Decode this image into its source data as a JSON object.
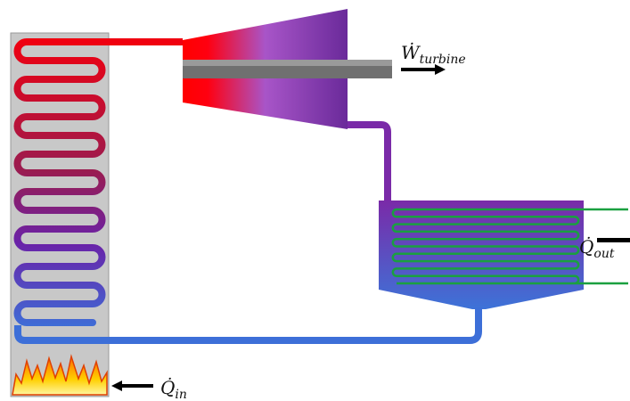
{
  "labels": {
    "turbine_work": {
      "symbol": "Ẇ",
      "subscript": "turbine"
    },
    "heat_out": {
      "symbol": "Q̇",
      "subscript": "out"
    },
    "heat_in": {
      "symbol": "Q̇",
      "subscript": "in"
    }
  }
}
